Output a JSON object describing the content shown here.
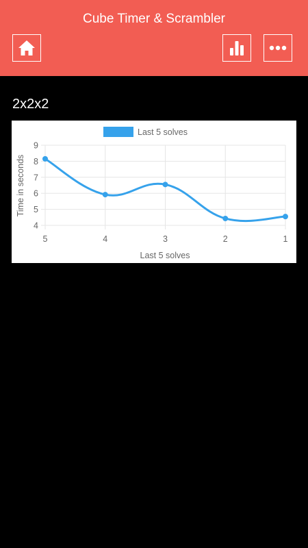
{
  "app": {
    "title": "Cube Timer & Scrambler"
  },
  "header": {
    "home_icon": "home-icon",
    "stats_icon": "bar-chart-icon",
    "more_icon": "more-dots-icon"
  },
  "section": {
    "title": "2x2x2"
  },
  "colors": {
    "header_bg": "#f25d53",
    "page_bg": "#000000",
    "series": "#36a2eb"
  },
  "chart_data": {
    "type": "line",
    "title": "",
    "xlabel": "Last 5 solves",
    "ylabel": "Time in seconds",
    "categories": [
      "5",
      "4",
      "3",
      "2",
      "1"
    ],
    "series": [
      {
        "name": "Last 5 solves",
        "values": [
          8.15,
          5.92,
          6.55,
          4.43,
          4.55
        ]
      }
    ],
    "ylim": [
      4,
      9
    ],
    "yticks": [
      "4",
      "5",
      "6",
      "7",
      "8",
      "9"
    ],
    "grid": true,
    "legend": "top-center",
    "smooth": true
  }
}
